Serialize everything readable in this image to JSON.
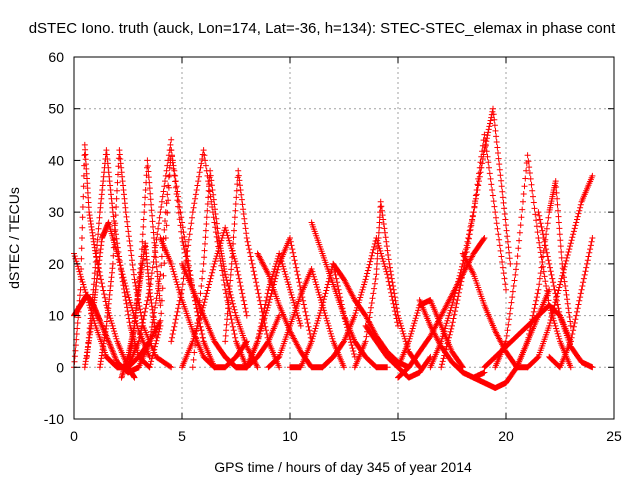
{
  "chart_data": {
    "type": "scatter",
    "title": "dSTEC Iono. truth (auck, Lon=174, Lat=-36, h=134): STEC-STEC_elemax in phase cont",
    "xlabel": "GPS time / hours of day 345 of year 2014",
    "ylabel": "dSTEC  / TECUs",
    "xlim": [
      0,
      25
    ],
    "ylim": [
      -10,
      60
    ],
    "xticks": [
      0,
      5,
      10,
      15,
      20,
      25
    ],
    "yticks": [
      -10,
      0,
      10,
      20,
      30,
      40,
      50,
      60
    ],
    "grid": true,
    "legend": "none",
    "marker": "plus",
    "color": "#ff0000",
    "series": [
      {
        "x": [
          0.0,
          0.5,
          1.0,
          1.5,
          2.0,
          2.5,
          3.0,
          3.5,
          4.0
        ],
        "y": [
          22,
          15,
          8,
          2,
          0,
          0,
          2,
          5,
          9
        ]
      },
      {
        "x": [
          0.0,
          0.3,
          0.6,
          0.9,
          1.2,
          1.6,
          2.0,
          2.5,
          3.0
        ],
        "y": [
          10,
          12,
          14,
          12,
          9,
          5,
          1,
          -1,
          0
        ]
      },
      {
        "x": [
          0.0,
          0.3,
          0.5,
          0.7,
          1.0,
          1.5,
          2.0,
          2.5,
          2.8
        ],
        "y": [
          0,
          15,
          43,
          30,
          22,
          12,
          5,
          0,
          -2
        ]
      },
      {
        "x": [
          0.5,
          0.8,
          1.0,
          1.3,
          1.6,
          2.0,
          2.5,
          3.0,
          3.5
        ],
        "y": [
          0,
          8,
          15,
          25,
          28,
          22,
          14,
          7,
          2
        ]
      },
      {
        "x": [
          0.6,
          0.9,
          1.2,
          1.5,
          1.8,
          2.2,
          2.6,
          3.0,
          3.5
        ],
        "y": [
          2,
          15,
          30,
          42,
          30,
          18,
          8,
          2,
          0
        ]
      },
      {
        "x": [
          1.2,
          1.5,
          1.8,
          2.1,
          2.4,
          2.8,
          3.2,
          3.8,
          4.5
        ],
        "y": [
          0,
          8,
          20,
          42,
          30,
          17,
          8,
          2,
          0
        ]
      },
      {
        "x": [
          1.5,
          2.0,
          2.5,
          3.0,
          3.5,
          4.0,
          4.5
        ],
        "y": [
          2,
          0,
          0,
          5,
          15,
          30,
          44
        ]
      },
      {
        "x": [
          2.2,
          2.5,
          2.8,
          3.1,
          3.4,
          3.7,
          4.0
        ],
        "y": [
          -2,
          2,
          8,
          20,
          40,
          25,
          12
        ]
      },
      {
        "x": [
          2.5,
          2.7,
          2.9,
          3.1,
          3.3,
          3.5,
          3.8
        ],
        "y": [
          0,
          5,
          12,
          18,
          24,
          15,
          6
        ]
      },
      {
        "x": [
          3.0,
          3.5,
          4.0,
          4.5,
          5.0,
          5.5,
          6.0
        ],
        "y": [
          0,
          5,
          18,
          42,
          28,
          15,
          5
        ]
      },
      {
        "x": [
          3.5,
          4.0,
          4.5,
          5.0,
          5.5,
          6.0,
          6.5
        ],
        "y": [
          0,
          8,
          42,
          25,
          15,
          5,
          0
        ]
      },
      {
        "x": [
          4.0,
          4.5,
          5.0,
          5.5,
          6.0,
          6.5,
          7.0,
          7.5,
          8.0
        ],
        "y": [
          25,
          20,
          13,
          7,
          2,
          0,
          0,
          2,
          5
        ]
      },
      {
        "x": [
          4.5,
          5.0,
          5.5,
          6.0,
          6.5,
          7.0,
          7.5,
          8.0
        ],
        "y": [
          5,
          15,
          30,
          42,
          28,
          15,
          5,
          0
        ]
      },
      {
        "x": [
          5.5,
          6.0,
          6.3,
          6.7,
          7.0,
          7.5,
          8.0,
          8.5
        ],
        "y": [
          0,
          20,
          38,
          25,
          18,
          10,
          4,
          0
        ]
      },
      {
        "x": [
          5.0,
          5.5,
          6.0,
          6.5,
          7.0,
          7.5,
          8.0
        ],
        "y": [
          0,
          5,
          12,
          20,
          27,
          20,
          10
        ]
      },
      {
        "x": [
          5.0,
          5.5,
          6.0,
          6.5,
          7.0,
          7.5,
          8.0,
          8.5,
          9.0,
          9.5
        ],
        "y": [
          20,
          15,
          10,
          5,
          2,
          0,
          0,
          2,
          5,
          10
        ]
      },
      {
        "x": [
          7.0,
          7.3,
          7.6,
          8.0,
          8.5,
          9.0,
          9.5
        ],
        "y": [
          5,
          20,
          38,
          25,
          15,
          5,
          0
        ]
      },
      {
        "x": [
          7.0,
          7.5,
          8.0,
          8.5,
          9.0,
          9.5,
          10.0,
          10.5
        ],
        "y": [
          2,
          0,
          0,
          5,
          15,
          22,
          15,
          8
        ]
      },
      {
        "x": [
          8.0,
          8.5,
          9.0,
          9.5,
          10.0,
          10.5,
          11.0
        ],
        "y": [
          0,
          5,
          12,
          20,
          25,
          15,
          5
        ]
      },
      {
        "x": [
          8.5,
          9.0,
          9.5,
          10.0,
          10.5,
          11.0,
          11.5,
          12.0
        ],
        "y": [
          22,
          18,
          12,
          7,
          3,
          0,
          0,
          2
        ]
      },
      {
        "x": [
          9.0,
          9.5,
          10.0,
          10.5,
          11.0,
          11.5,
          12.0,
          12.5
        ],
        "y": [
          0,
          2,
          8,
          14,
          19,
          12,
          5,
          0
        ]
      },
      {
        "x": [
          10.0,
          10.5,
          11.0,
          11.5,
          12.0,
          12.5,
          13.0
        ],
        "y": [
          0,
          0,
          5,
          12,
          20,
          10,
          2
        ]
      },
      {
        "x": [
          11.0,
          11.5,
          12.0,
          12.5,
          13.0,
          13.5,
          14.0,
          14.5
        ],
        "y": [
          28,
          22,
          16,
          10,
          5,
          2,
          0,
          0
        ]
      },
      {
        "x": [
          11.5,
          12.0,
          12.5,
          13.0,
          13.5,
          14.0,
          14.5,
          15.0
        ],
        "y": [
          0,
          2,
          5,
          10,
          17,
          25,
          18,
          8
        ]
      },
      {
        "x": [
          12.0,
          12.5,
          13.0,
          13.5,
          14.0,
          14.5,
          15.0,
          15.5
        ],
        "y": [
          20,
          17,
          13,
          10,
          6,
          3,
          1,
          0
        ]
      },
      {
        "x": [
          13.0,
          13.5,
          14.0,
          14.2,
          14.6,
          15.0,
          15.5,
          16.0
        ],
        "y": [
          0,
          5,
          18,
          32,
          20,
          10,
          3,
          0
        ]
      },
      {
        "x": [
          13.5,
          14.0,
          14.5,
          15.0,
          15.5,
          16.0,
          16.5
        ],
        "y": [
          8,
          5,
          2,
          0,
          -2,
          -1,
          2
        ]
      },
      {
        "x": [
          15.0,
          15.5,
          16.0,
          16.5,
          17.0,
          17.5,
          18.0
        ],
        "y": [
          0,
          5,
          12,
          13,
          8,
          3,
          0
        ]
      },
      {
        "x": [
          15.0,
          15.5,
          16.0,
          16.5,
          17.0,
          17.5,
          18.0,
          18.5,
          19.0
        ],
        "y": [
          -2,
          0,
          3,
          6,
          10,
          14,
          18,
          22,
          25
        ]
      },
      {
        "x": [
          16.0,
          16.5,
          17.0,
          17.5,
          18.0,
          18.5,
          19.0
        ],
        "y": [
          13,
          8,
          4,
          1,
          -1,
          -2,
          -1
        ]
      },
      {
        "x": [
          16.5,
          17.0,
          17.5,
          18.0,
          18.5,
          19.0,
          19.5,
          20.0
        ],
        "y": [
          0,
          5,
          12,
          20,
          30,
          45,
          30,
          15
        ]
      },
      {
        "x": [
          17.0,
          17.5,
          18.0,
          18.5,
          19.0,
          19.4,
          19.8,
          20.2
        ],
        "y": [
          0,
          8,
          18,
          30,
          42,
          50,
          35,
          20
        ]
      },
      {
        "x": [
          18.0,
          18.5,
          19.0,
          19.5,
          20.0,
          20.5,
          21.0
        ],
        "y": [
          22,
          18,
          12,
          7,
          3,
          0,
          0
        ]
      },
      {
        "x": [
          18.5,
          19.0,
          19.5,
          20.0,
          20.5,
          21.0,
          21.5,
          22.0
        ],
        "y": [
          -2,
          -3,
          -4,
          -3,
          0,
          5,
          10,
          15
        ]
      },
      {
        "x": [
          19.0,
          19.5,
          20.0,
          20.5,
          21.0,
          21.5,
          22.0,
          22.5,
          23.0
        ],
        "y": [
          0,
          2,
          4,
          6,
          8,
          10,
          12,
          10,
          5
        ]
      },
      {
        "x": [
          19.5,
          20.0,
          20.5,
          21.0,
          21.5,
          22.0,
          22.5,
          23.0
        ],
        "y": [
          0,
          5,
          20,
          41,
          25,
          12,
          5,
          0
        ]
      },
      {
        "x": [
          20.5,
          21.0,
          21.5,
          22.0,
          22.3,
          22.6,
          23.0
        ],
        "y": [
          0,
          5,
          15,
          30,
          36,
          20,
          8
        ]
      },
      {
        "x": [
          21.0,
          21.5,
          22.0,
          22.5,
          23.0,
          23.5,
          24.0
        ],
        "y": [
          0,
          2,
          8,
          16,
          24,
          32,
          37
        ]
      },
      {
        "x": [
          21.5,
          22.0,
          22.5,
          23.0,
          23.5,
          24.0
        ],
        "y": [
          30,
          20,
          10,
          4,
          1,
          0
        ]
      },
      {
        "x": [
          22.0,
          22.5,
          23.0,
          23.5,
          24.0
        ],
        "y": [
          2,
          0,
          5,
          15,
          25
        ]
      }
    ]
  }
}
